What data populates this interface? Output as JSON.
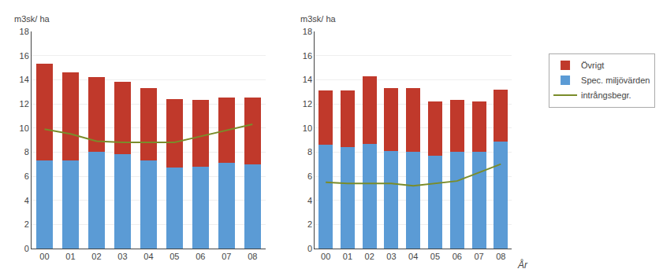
{
  "chart_data": [
    {
      "type": "bar",
      "stacked": true,
      "grid": true,
      "ylabel": "m3sk/ ha",
      "categories": [
        "00",
        "01",
        "02",
        "03",
        "04",
        "05",
        "06",
        "07",
        "08"
      ],
      "series": [
        {
          "name": "Spec. miljövärden",
          "type": "bar",
          "color": "#5B9BD5",
          "values": [
            7.3,
            7.3,
            8.0,
            7.8,
            7.3,
            6.7,
            6.8,
            7.1,
            7.0
          ]
        },
        {
          "name": "Övrigt",
          "type": "bar",
          "color": "#C0392B",
          "values": [
            8.0,
            7.3,
            6.2,
            6.0,
            6.0,
            5.7,
            5.5,
            5.4,
            5.5
          ]
        },
        {
          "name": "intrångsbegr.",
          "type": "line",
          "color": "#7A8C2A",
          "values": [
            9.9,
            9.5,
            8.9,
            8.8,
            8.8,
            8.8,
            9.3,
            9.8,
            10.3
          ]
        }
      ],
      "ylim": [
        0,
        18
      ],
      "yticks": [
        0,
        2,
        4,
        6,
        8,
        10,
        12,
        14,
        16,
        18
      ]
    },
    {
      "type": "bar",
      "stacked": true,
      "grid": true,
      "legend": "right",
      "ylabel": "m3sk/ ha",
      "xlabel": "År",
      "categories": [
        "00",
        "01",
        "02",
        "03",
        "04",
        "05",
        "06",
        "07",
        "08"
      ],
      "series": [
        {
          "name": "Spec. miljövärden",
          "type": "bar",
          "color": "#5B9BD5",
          "values": [
            8.6,
            8.4,
            8.7,
            8.1,
            8.0,
            7.7,
            8.0,
            8.0,
            8.9
          ]
        },
        {
          "name": "Övrigt",
          "type": "bar",
          "color": "#C0392B",
          "values": [
            4.5,
            4.7,
            5.6,
            5.2,
            5.3,
            4.5,
            4.3,
            4.2,
            4.3
          ]
        },
        {
          "name": "intrångsbegr.",
          "type": "line",
          "color": "#7A8C2A",
          "values": [
            5.5,
            5.4,
            5.4,
            5.4,
            5.2,
            5.4,
            5.6,
            6.3,
            7.0
          ]
        }
      ],
      "ylim": [
        0,
        18
      ],
      "yticks": [
        0,
        2,
        4,
        6,
        8,
        10,
        12,
        14,
        16,
        18
      ]
    }
  ]
}
